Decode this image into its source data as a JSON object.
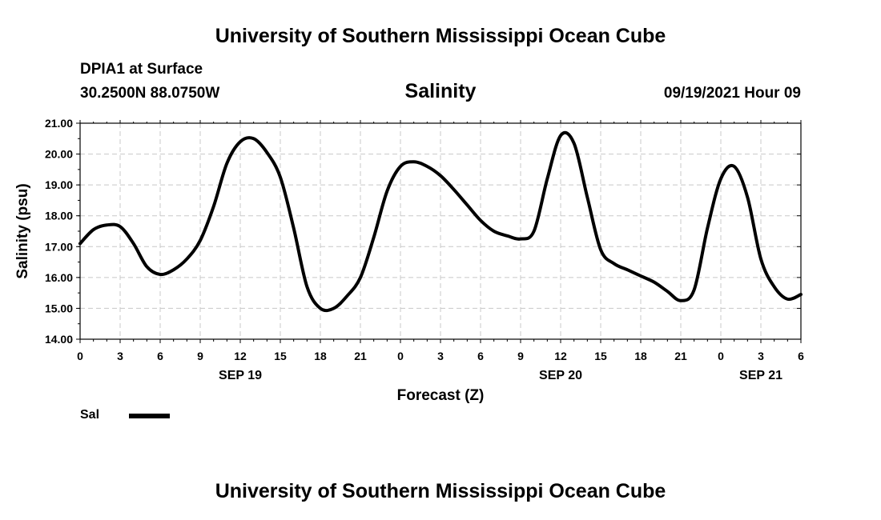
{
  "header": {
    "title": "University of Southern Mississippi Ocean Cube",
    "station": "DPIA1 at Surface",
    "coords": "30.2500N  88.0750W",
    "variable": "Salinity",
    "datetime": "09/19/2021 Hour 09"
  },
  "footer": {
    "title": "University of Southern Mississippi Ocean Cube"
  },
  "legend": {
    "label": "Sal",
    "color": "#000000"
  },
  "chart_data": {
    "type": "line",
    "title": "Salinity",
    "xlabel": "Forecast (Z)",
    "ylabel": "Salinity (psu)",
    "xlim": [
      0,
      54
    ],
    "ylim": [
      14.0,
      21.0
    ],
    "grid": true,
    "legend_position": "bottom-left",
    "yticks": [
      "14.00",
      "15.00",
      "16.00",
      "17.00",
      "18.00",
      "19.00",
      "20.00",
      "21.00"
    ],
    "xticks": [
      {
        "x": 0,
        "label": "0"
      },
      {
        "x": 3,
        "label": "3"
      },
      {
        "x": 6,
        "label": "6"
      },
      {
        "x": 9,
        "label": "9"
      },
      {
        "x": 12,
        "label": "12"
      },
      {
        "x": 15,
        "label": "15"
      },
      {
        "x": 18,
        "label": "18"
      },
      {
        "x": 21,
        "label": "21"
      },
      {
        "x": 24,
        "label": "0"
      },
      {
        "x": 27,
        "label": "3"
      },
      {
        "x": 30,
        "label": "6"
      },
      {
        "x": 33,
        "label": "9"
      },
      {
        "x": 36,
        "label": "12"
      },
      {
        "x": 39,
        "label": "15"
      },
      {
        "x": 42,
        "label": "18"
      },
      {
        "x": 45,
        "label": "21"
      },
      {
        "x": 48,
        "label": "0"
      },
      {
        "x": 51,
        "label": "3"
      },
      {
        "x": 54,
        "label": "6"
      }
    ],
    "date_labels": [
      {
        "x": 12,
        "label": "SEP 19"
      },
      {
        "x": 36,
        "label": "SEP 20"
      },
      {
        "x": 51,
        "label": "SEP 21"
      }
    ],
    "series": [
      {
        "name": "Sal",
        "color": "#000000",
        "x": [
          0,
          1,
          2,
          3,
          4,
          5,
          6,
          7,
          8,
          9,
          10,
          11,
          12,
          13,
          14,
          15,
          16,
          17,
          18,
          19,
          20,
          21,
          22,
          23,
          24,
          25,
          26,
          27,
          28,
          29,
          30,
          31,
          32,
          33,
          34,
          35,
          36,
          37,
          38,
          39,
          40,
          41,
          42,
          43,
          44,
          45,
          46,
          47,
          48,
          49,
          50,
          51,
          52,
          53,
          54
        ],
        "values": [
          17.1,
          17.55,
          17.7,
          17.65,
          17.1,
          16.35,
          16.1,
          16.25,
          16.6,
          17.2,
          18.3,
          19.7,
          20.4,
          20.5,
          20.05,
          19.25,
          17.6,
          15.7,
          15.0,
          15.0,
          15.4,
          16.0,
          17.3,
          18.8,
          19.6,
          19.75,
          19.6,
          19.3,
          18.85,
          18.35,
          17.85,
          17.5,
          17.35,
          17.25,
          17.5,
          19.2,
          20.6,
          20.35,
          18.6,
          16.9,
          16.45,
          16.25,
          16.05,
          15.85,
          15.55,
          15.25,
          15.6,
          17.6,
          19.2,
          19.6,
          18.6,
          16.6,
          15.7,
          15.3,
          15.45
        ]
      }
    ]
  }
}
